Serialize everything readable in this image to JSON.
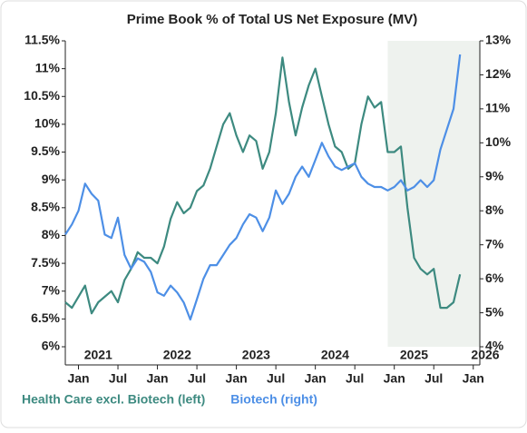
{
  "chart_data": {
    "type": "line",
    "title": "Prime Book % of Total US Net Exposure (MV)",
    "x": [
      "2020-11",
      "2020-12",
      "2021-01",
      "2021-02",
      "2021-03",
      "2021-04",
      "2021-05",
      "2021-06",
      "2021-07",
      "2021-08",
      "2021-09",
      "2021-10",
      "2021-11",
      "2021-12",
      "2022-01",
      "2022-02",
      "2022-03",
      "2022-04",
      "2022-05",
      "2022-06",
      "2022-07",
      "2022-08",
      "2022-09",
      "2022-10",
      "2022-11",
      "2022-12",
      "2023-01",
      "2023-02",
      "2023-03",
      "2023-04",
      "2023-05",
      "2023-06",
      "2023-07",
      "2023-08",
      "2023-09",
      "2023-10",
      "2023-11",
      "2023-12",
      "2024-01",
      "2024-02",
      "2024-03",
      "2024-04",
      "2024-05",
      "2024-06",
      "2024-07",
      "2024-08",
      "2024-09",
      "2024-10",
      "2024-11",
      "2024-12",
      "2025-01",
      "2025-02",
      "2025-03",
      "2025-04",
      "2025-05",
      "2025-06",
      "2025-07",
      "2025-08",
      "2025-09",
      "2025-10",
      "2025-11"
    ],
    "series": [
      {
        "name": "Health Care excl. Biotech (left)",
        "color": "#3d8a80",
        "axis": "y",
        "values": [
          6.8,
          6.7,
          6.9,
          7.1,
          6.6,
          6.8,
          6.9,
          7.0,
          6.8,
          7.2,
          7.4,
          7.7,
          7.6,
          7.6,
          7.5,
          7.8,
          8.3,
          8.6,
          8.4,
          8.5,
          8.8,
          8.9,
          9.2,
          9.6,
          10.0,
          10.2,
          9.8,
          9.5,
          9.8,
          9.7,
          9.2,
          9.5,
          10.2,
          11.2,
          10.4,
          9.8,
          10.3,
          10.7,
          11.0,
          10.5,
          10.0,
          9.6,
          9.5,
          9.2,
          9.3,
          10.0,
          10.5,
          10.3,
          10.4,
          9.5,
          9.5,
          9.6,
          8.5,
          7.6,
          7.4,
          7.3,
          7.4,
          6.7,
          6.7,
          6.8,
          7.3
        ]
      },
      {
        "name": "Biotech (right)",
        "color": "#4d8fe6",
        "axis": "y2",
        "values": [
          7.3,
          7.6,
          8.0,
          8.8,
          8.5,
          8.3,
          7.3,
          7.2,
          7.8,
          6.7,
          6.3,
          6.6,
          6.5,
          6.2,
          5.6,
          5.5,
          5.8,
          5.6,
          5.3,
          4.8,
          5.4,
          6.0,
          6.4,
          6.4,
          6.7,
          7.0,
          7.2,
          7.6,
          7.9,
          7.8,
          7.4,
          7.8,
          8.6,
          8.2,
          8.5,
          9.0,
          9.3,
          9.0,
          9.5,
          10.0,
          9.6,
          9.3,
          9.2,
          9.3,
          9.4,
          9.0,
          8.8,
          8.7,
          8.7,
          8.6,
          8.7,
          8.9,
          8.6,
          8.7,
          8.9,
          8.7,
          8.9,
          9.8,
          10.4,
          11.0,
          12.6
        ]
      }
    ],
    "xlim": [
      "2020-11",
      "2026-02"
    ],
    "xticks": [
      {
        "value": "2021-01",
        "label": "Jan"
      },
      {
        "value": "2021-07",
        "label": "Jul"
      },
      {
        "value": "2022-01",
        "label": "Jan"
      },
      {
        "value": "2022-07",
        "label": "Jul"
      },
      {
        "value": "2023-01",
        "label": "Jan"
      },
      {
        "value": "2023-07",
        "label": "Jul"
      },
      {
        "value": "2024-01",
        "label": "Jan"
      },
      {
        "value": "2024-07",
        "label": "Jul"
      },
      {
        "value": "2025-01",
        "label": "Jan"
      },
      {
        "value": "2025-07",
        "label": "Jul"
      },
      {
        "value": "2026-01",
        "label": "Jan"
      }
    ],
    "year_labels": [
      "2021",
      "2022",
      "2023",
      "2024",
      "2025",
      "2026"
    ],
    "ylim": [
      6,
      11.5
    ],
    "yticks": [
      {
        "value": 6,
        "label": "6%"
      },
      {
        "value": 6.5,
        "label": "6.5%"
      },
      {
        "value": 7,
        "label": "7%"
      },
      {
        "value": 7.5,
        "label": "7.5%"
      },
      {
        "value": 8,
        "label": "8%"
      },
      {
        "value": 8.5,
        "label": "8.5%"
      },
      {
        "value": 9,
        "label": "9%"
      },
      {
        "value": 9.5,
        "label": "9.5%"
      },
      {
        "value": 10,
        "label": "10%"
      },
      {
        "value": 10.5,
        "label": "10.5%"
      },
      {
        "value": 11,
        "label": "11%"
      },
      {
        "value": 11.5,
        "label": "11.5%"
      }
    ],
    "y2lim": [
      4,
      13
    ],
    "y2ticks": [
      {
        "value": 4,
        "label": "4%"
      },
      {
        "value": 5,
        "label": "5%"
      },
      {
        "value": 6,
        "label": "6%"
      },
      {
        "value": 7,
        "label": "7%"
      },
      {
        "value": 8,
        "label": "8%"
      },
      {
        "value": 9,
        "label": "9%"
      },
      {
        "value": 10,
        "label": "10%"
      },
      {
        "value": 11,
        "label": "11%"
      },
      {
        "value": 12,
        "label": "12%"
      },
      {
        "value": 13,
        "label": "13%"
      }
    ],
    "shaded_region": [
      "2024-12",
      "2026-02"
    ],
    "shade_color": "#eef2ee"
  }
}
